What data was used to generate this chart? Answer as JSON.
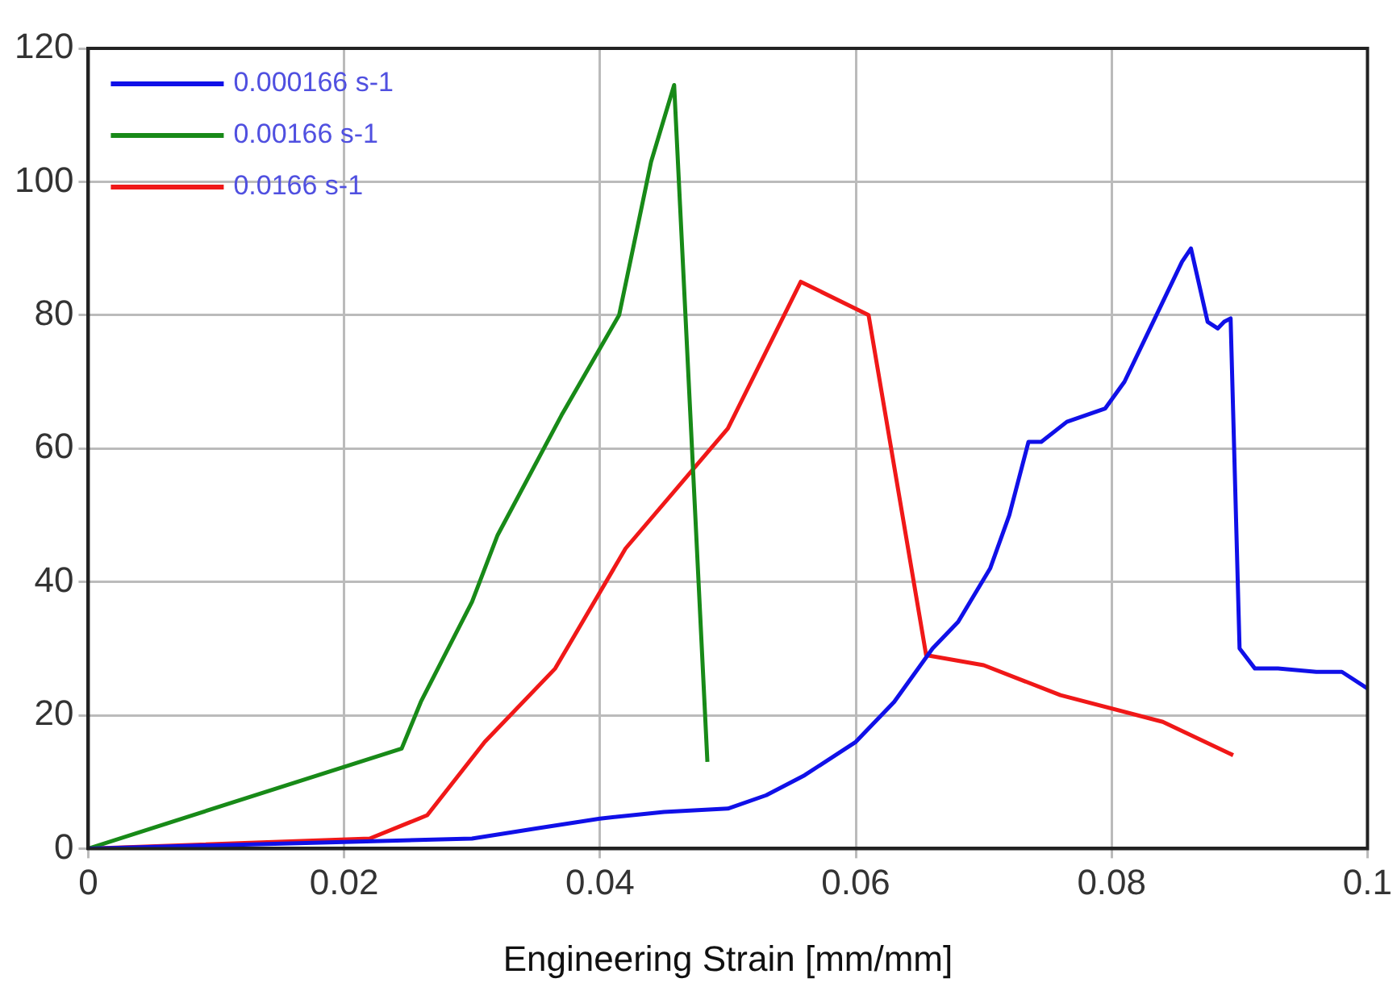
{
  "chart_data": {
    "type": "line",
    "xlabel": "Engineering Strain [mm/mm]",
    "xlim": [
      0,
      0.1
    ],
    "xticks": [
      0,
      0.02,
      0.04,
      0.06,
      0.08,
      {
        "value": 0.1,
        "label": "0.1"
      }
    ],
    "ylim": [
      0,
      120
    ],
    "yticks": [
      0,
      20,
      40,
      60,
      80,
      100,
      120
    ],
    "grid": true,
    "legend": "top left",
    "marker": "none",
    "line_style": "solid",
    "series": [
      {
        "name": "0.000166 s-1",
        "color": "#1010e8",
        "x": [
          0,
          0.02,
          0.03,
          0.035,
          0.04,
          0.045,
          0.05,
          0.053,
          0.056,
          0.06,
          0.063,
          0.066,
          0.068,
          0.0705,
          0.072,
          0.0735,
          0.0745,
          0.0765,
          0.078,
          0.0795,
          0.081,
          0.083,
          0.0855,
          0.0862,
          0.0875,
          0.0883,
          0.0888,
          0.0893,
          0.09,
          0.0912,
          0.093,
          0.096,
          0.098,
          0.1
        ],
        "values": [
          0,
          1,
          1.5,
          3,
          4.5,
          5.5,
          6,
          8,
          11,
          16,
          22,
          30,
          34,
          42,
          50,
          61,
          61,
          64,
          65,
          66,
          70,
          78,
          88,
          90,
          79,
          78,
          79,
          79.5,
          30,
          27,
          27,
          26.5,
          26.5,
          24
        ]
      },
      {
        "name": "0.00166 s-1",
        "color": "#188a18",
        "x": [
          0,
          0.0245,
          0.026,
          0.03,
          0.032,
          0.037,
          0.0415,
          0.044,
          0.0458,
          0.0484
        ],
        "values": [
          0,
          15,
          22,
          37,
          47,
          65,
          80,
          103,
          114.5,
          13
        ]
      },
      {
        "name": "0.0166 s-1",
        "color": "#f01818",
        "x": [
          0,
          0.022,
          0.0265,
          0.031,
          0.0365,
          0.042,
          0.05,
          0.0557,
          0.061,
          0.0655,
          0.07,
          0.076,
          0.084,
          0.0895
        ],
        "values": [
          0,
          1.5,
          5,
          16,
          27,
          45,
          63,
          85,
          80,
          29,
          27.5,
          23,
          19,
          14
        ]
      }
    ]
  }
}
